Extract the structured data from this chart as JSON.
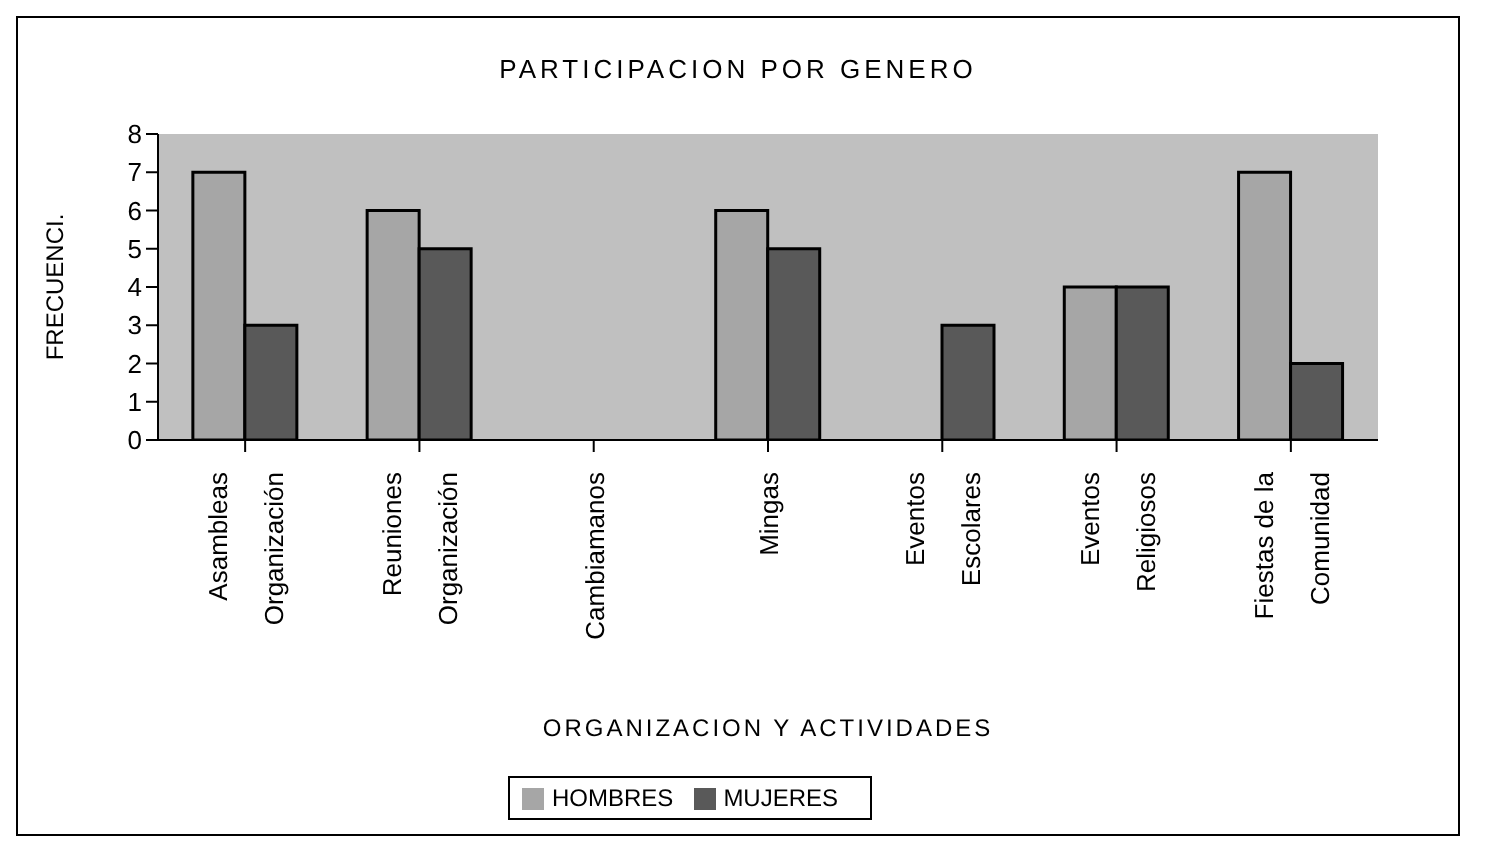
{
  "chart_data": {
    "type": "bar",
    "title": "PARTICIPACION POR GENERO",
    "xlabel": "ORGANIZACION Y ACTIVIDADES",
    "ylabel": "FRECUENCI.",
    "categories": [
      "Asambleas Organización",
      "Reuniones Organización",
      "Cambiamanos",
      "Mingas",
      "Eventos Escolares",
      "Eventos Religiosos",
      "Fiestas de la Comunidad"
    ],
    "series": [
      {
        "name": "HOMBRES",
        "color": "#a6a6a6",
        "values": [
          7,
          6,
          0,
          6,
          0,
          4,
          7
        ]
      },
      {
        "name": "MUJERES",
        "color": "#595959",
        "values": [
          3,
          5,
          0,
          5,
          3,
          4,
          2
        ]
      }
    ],
    "ylim": [
      0,
      8
    ],
    "yticks": [
      0,
      1,
      2,
      3,
      4,
      5,
      6,
      7,
      8
    ],
    "grid": false,
    "legend": "bottom"
  }
}
